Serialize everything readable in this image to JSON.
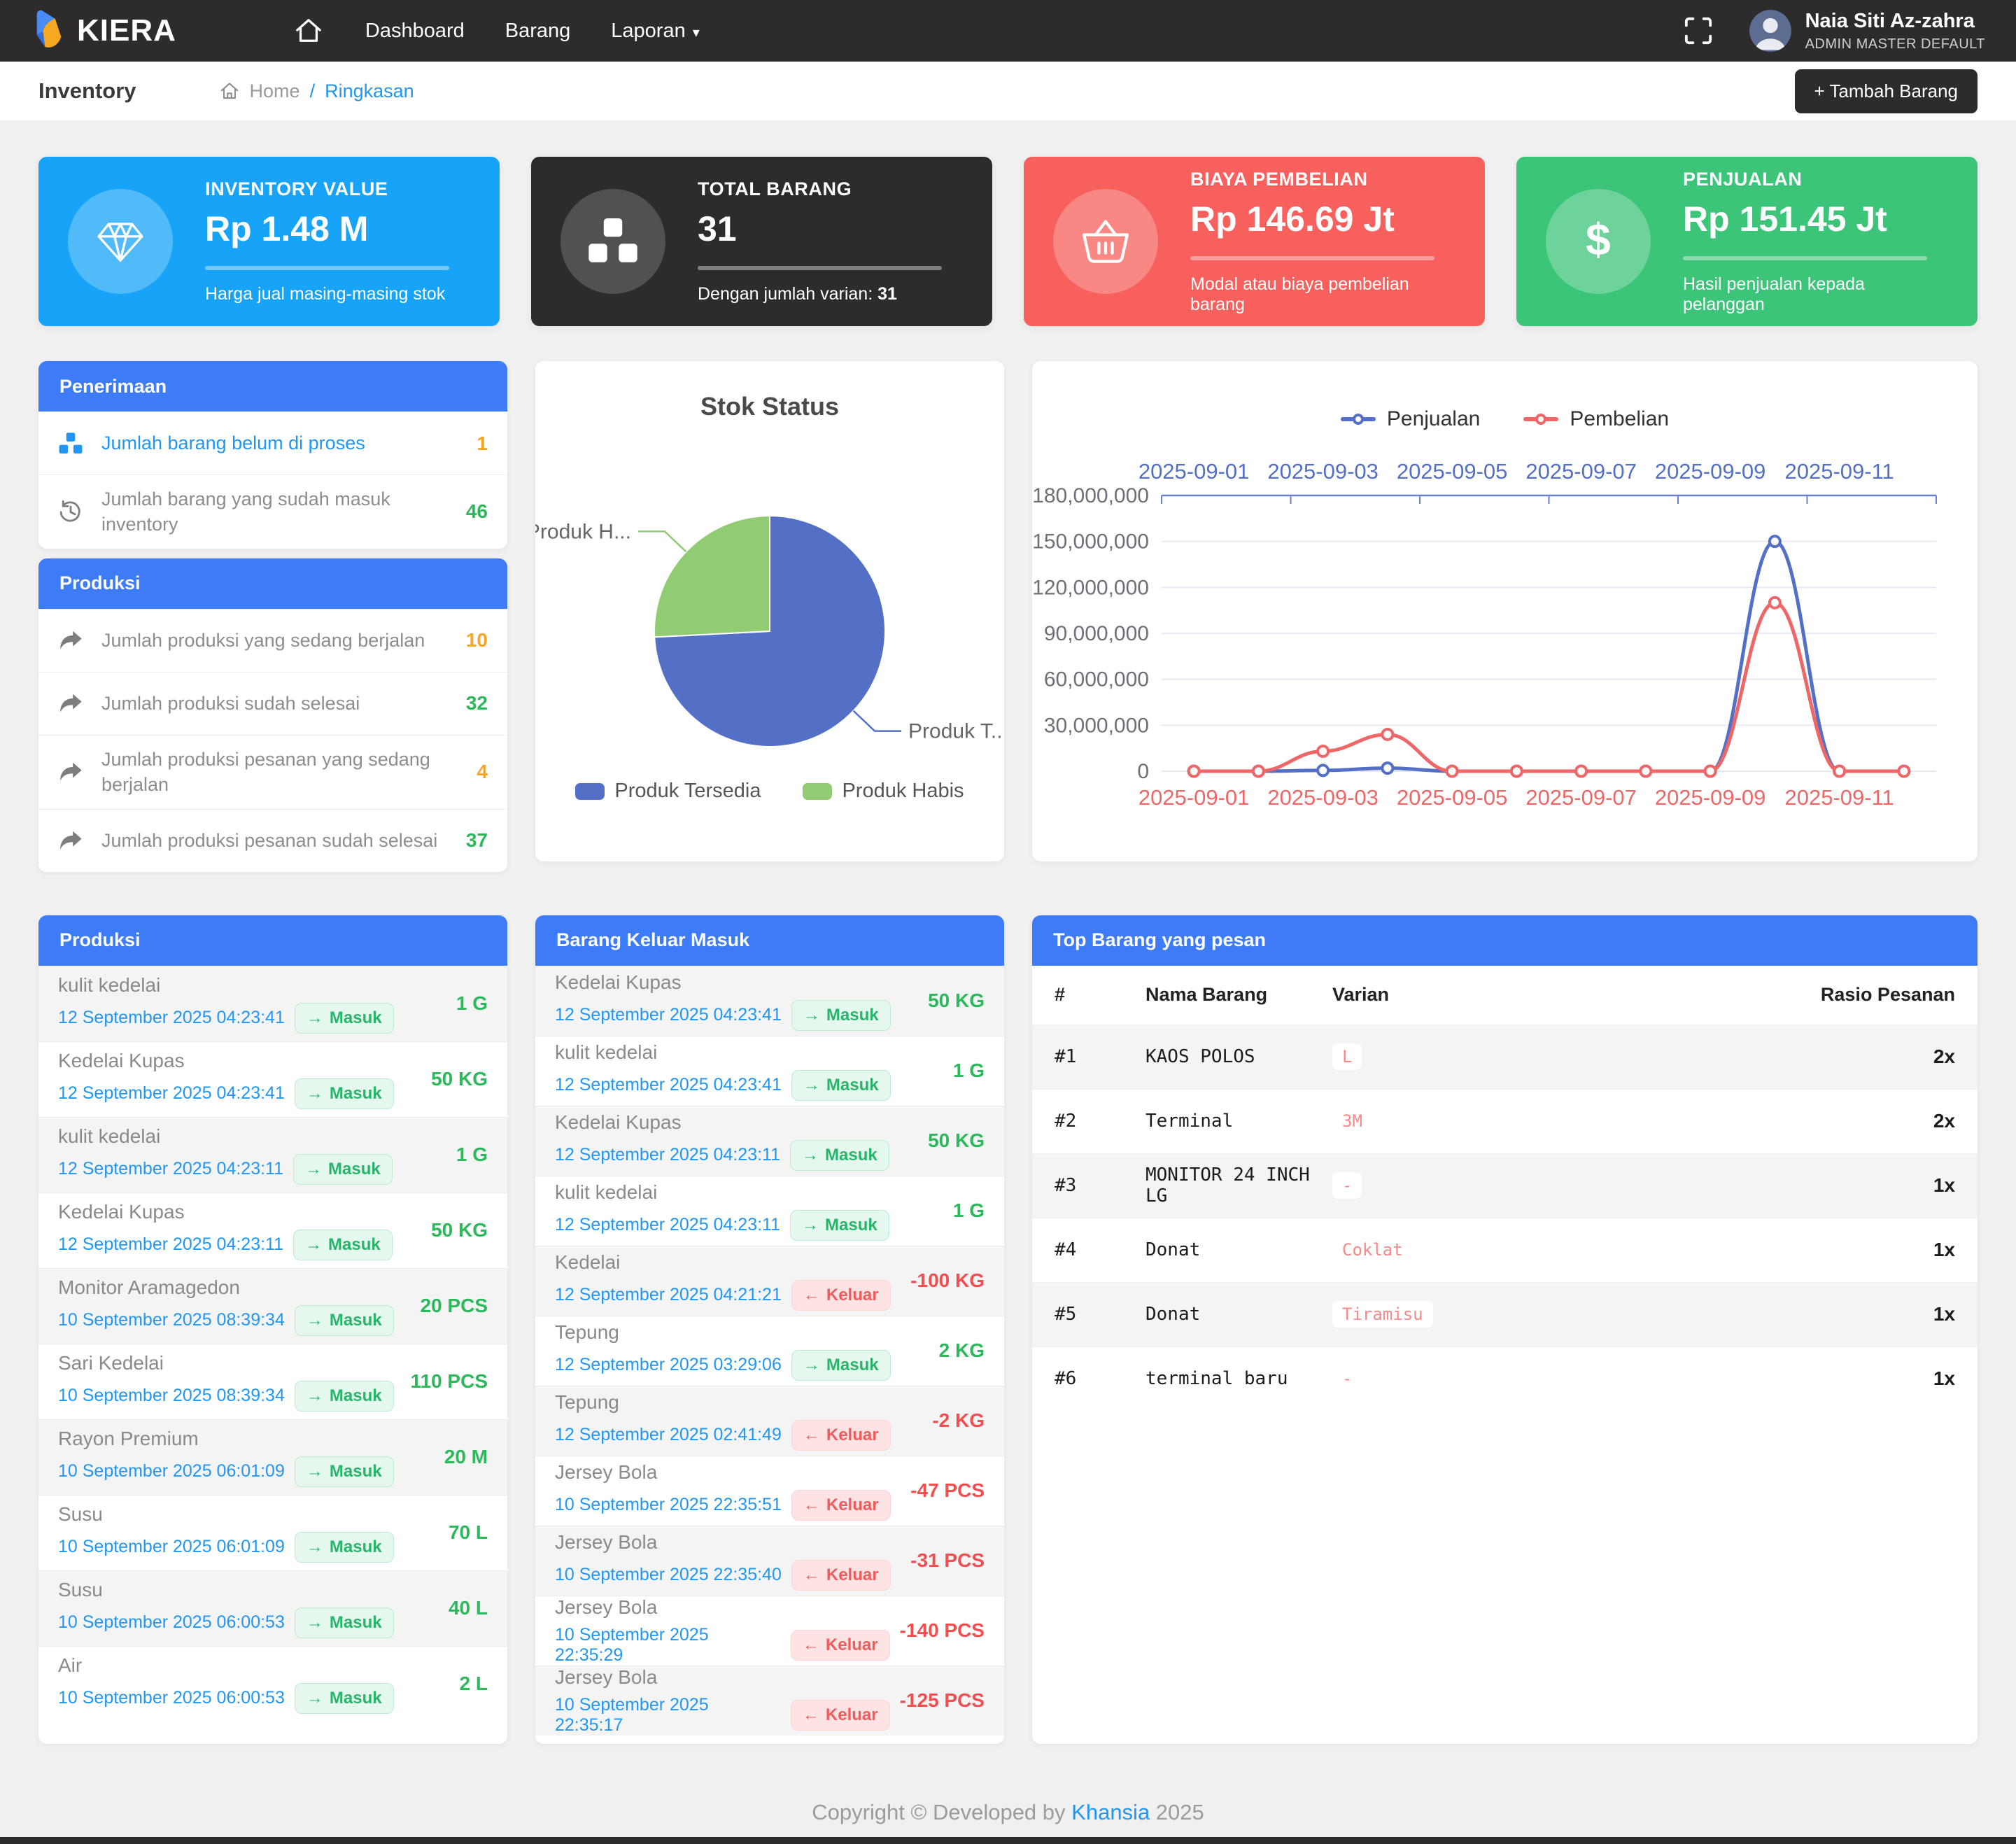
{
  "navbar": {
    "brand": "KIERA",
    "links": [
      {
        "label": "Dashboard",
        "caret": false
      },
      {
        "label": "Barang",
        "caret": false
      },
      {
        "label": "Laporan",
        "caret": true
      }
    ],
    "user": {
      "name": "Naia Siti Az-zahra",
      "role": "ADMIN MASTER DEFAULT"
    }
  },
  "breadcrumb": {
    "page_title": "Inventory",
    "home": "Home",
    "separator": "/",
    "current": "Ringkasan",
    "add_button": "+ Tambah Barang"
  },
  "stats": [
    {
      "label": "INVENTORY VALUE",
      "value": "Rp 1.48 M",
      "note": "Harga jual masing-masing stok",
      "color": "#17a3f7",
      "icon": "gem-icon"
    },
    {
      "label": "TOTAL BARANG",
      "value": "31",
      "note_prefix": "Dengan jumlah varian: ",
      "note_bold": "31",
      "color": "#2d2b2b",
      "icon": "cubes-icon"
    },
    {
      "label": "BIAYA PEMBELIAN",
      "value": "Rp 146.69 Jt",
      "note": "Modal atau biaya pembelian barang",
      "color": "#f7605c",
      "icon": "basket-icon"
    },
    {
      "label": "PENJUALAN",
      "value": "Rp 151.45 Jt",
      "note": "Hasil penjualan kepada pelanggan",
      "color": "#3cc479",
      "icon": "dollar-icon"
    }
  ],
  "penerimaan": {
    "title": "Penerimaan",
    "items": [
      {
        "icon": "cubes-icon",
        "label": "Jumlah barang belum di proses",
        "value": "1",
        "label_color": "#2196f3",
        "icon_color": "#2196f3",
        "value_color": "#f5a623"
      },
      {
        "icon": "history-icon",
        "label": "Jumlah barang yang sudah masuk inventory",
        "value": "46",
        "label_color": "#8d8d8d",
        "icon_color": "#7d7d7d",
        "value_color": "#2eb85c"
      }
    ]
  },
  "produksi_summary": {
    "title": "Produksi",
    "items": [
      {
        "icon": "share-icon",
        "label": "Jumlah produksi yang sedang berjalan",
        "value": "10",
        "label_color": "#8d8d8d",
        "icon_color": "#7d7d7d",
        "value_color": "#f5a623"
      },
      {
        "icon": "share-icon",
        "label": "Jumlah produksi sudah selesai",
        "value": "32",
        "label_color": "#8d8d8d",
        "icon_color": "#7d7d7d",
        "value_color": "#2eb85c"
      },
      {
        "icon": "share-icon",
        "label": "Jumlah produksi pesanan yang sedang berjalan",
        "value": "4",
        "label_color": "#8d8d8d",
        "icon_color": "#7d7d7d",
        "value_color": "#f5a623"
      },
      {
        "icon": "share-icon",
        "label": "Jumlah produksi pesanan sudah selesai",
        "value": "37",
        "label_color": "#8d8d8d",
        "icon_color": "#7d7d7d",
        "value_color": "#2eb85c"
      }
    ]
  },
  "chart_data": [
    {
      "type": "pie",
      "title": "Stok Status",
      "series": [
        {
          "name": "Produk Tersedia",
          "value": 23,
          "color": "#5470c6",
          "callout": "Produk T..."
        },
        {
          "name": "Produk Habis",
          "value": 8,
          "color": "#91cc75",
          "callout": "Produk H..."
        }
      ],
      "legend_position": "bottom"
    },
    {
      "type": "line",
      "x": [
        "2025-09-01",
        "2025-09-02",
        "2025-09-03",
        "2025-09-04",
        "2025-09-05",
        "2025-09-06",
        "2025-09-07",
        "2025-09-08",
        "2025-09-09",
        "2025-09-10",
        "2025-09-11",
        "2025-09-12"
      ],
      "series": [
        {
          "name": "Penjualan",
          "color": "#5470c6",
          "values": [
            0,
            0,
            500000,
            2000000,
            0,
            0,
            0,
            0,
            0,
            150000000,
            0,
            0
          ]
        },
        {
          "name": "Pembelian",
          "color": "#ee6666",
          "values": [
            0,
            0,
            13000000,
            24000000,
            0,
            0,
            0,
            0,
            0,
            110000000,
            0,
            0
          ]
        }
      ],
      "ylim": [
        0,
        180000000
      ],
      "ytick_step": 30000000,
      "x_label_every": 2,
      "grid": true,
      "legend_position": "top",
      "axis_label_color": "#6e7079"
    }
  ],
  "produksi_log": {
    "title": "Produksi",
    "rows": [
      {
        "name": "kulit kedelai",
        "datetime": "12 September 2025 04:23:41",
        "direction": "in",
        "qty": "1 G"
      },
      {
        "name": "Kedelai Kupas",
        "datetime": "12 September 2025 04:23:41",
        "direction": "in",
        "qty": "50 KG"
      },
      {
        "name": "kulit kedelai",
        "datetime": "12 September 2025 04:23:11",
        "direction": "in",
        "qty": "1 G"
      },
      {
        "name": "Kedelai Kupas",
        "datetime": "12 September 2025 04:23:11",
        "direction": "in",
        "qty": "50 KG"
      },
      {
        "name": "Monitor Aramagedon",
        "datetime": "10 September 2025 08:39:34",
        "direction": "in",
        "qty": "20 PCS"
      },
      {
        "name": "Sari Kedelai",
        "datetime": "10 September 2025 08:39:34",
        "direction": "in",
        "qty": "110 PCS"
      },
      {
        "name": "Rayon Premium",
        "datetime": "10 September 2025 06:01:09",
        "direction": "in",
        "qty": "20 M"
      },
      {
        "name": "Susu",
        "datetime": "10 September 2025 06:01:09",
        "direction": "in",
        "qty": "70 L"
      },
      {
        "name": "Susu",
        "datetime": "10 September 2025 06:00:53",
        "direction": "in",
        "qty": "40 L"
      },
      {
        "name": "Air",
        "datetime": "10 September 2025 06:00:53",
        "direction": "in",
        "qty": "2 L"
      }
    ]
  },
  "keluar_masuk": {
    "title": "Barang Keluar Masuk",
    "rows": [
      {
        "name": "Kedelai Kupas",
        "datetime": "12 September 2025 04:23:41",
        "direction": "in",
        "qty": "50 KG"
      },
      {
        "name": "kulit kedelai",
        "datetime": "12 September 2025 04:23:41",
        "direction": "in",
        "qty": "1 G"
      },
      {
        "name": "Kedelai Kupas",
        "datetime": "12 September 2025 04:23:11",
        "direction": "in",
        "qty": "50 KG"
      },
      {
        "name": "kulit kedelai",
        "datetime": "12 September 2025 04:23:11",
        "direction": "in",
        "qty": "1 G"
      },
      {
        "name": "Kedelai",
        "datetime": "12 September 2025 04:21:21",
        "direction": "out",
        "qty": "-100 KG"
      },
      {
        "name": "Tepung",
        "datetime": "12 September 2025 03:29:06",
        "direction": "in",
        "qty": "2 KG"
      },
      {
        "name": "Tepung",
        "datetime": "12 September 2025 02:41:49",
        "direction": "out",
        "qty": "-2 KG"
      },
      {
        "name": "Jersey Bola",
        "datetime": "10 September 2025 22:35:51",
        "direction": "out",
        "qty": "-47 PCS"
      },
      {
        "name": "Jersey Bola",
        "datetime": "10 September 2025 22:35:40",
        "direction": "out",
        "qty": "-31 PCS"
      },
      {
        "name": "Jersey Bola",
        "datetime": "10 September 2025 22:35:29",
        "direction": "out",
        "qty": "-140 PCS"
      },
      {
        "name": "Jersey Bola",
        "datetime": "10 September 2025 22:35:17",
        "direction": "out",
        "qty": "-125 PCS"
      }
    ]
  },
  "badges": {
    "in_label": "Masuk",
    "out_label": "Keluar",
    "in_arrow": "→",
    "out_arrow": "←"
  },
  "top_barang": {
    "title": "Top Barang yang pesan",
    "headers": [
      "#",
      "Nama Barang",
      "Varian",
      "Rasio Pesanan"
    ],
    "rows": [
      {
        "rank": "#1",
        "name": "KAOS POLOS",
        "varian": "L",
        "rasio": "2x"
      },
      {
        "rank": "#2",
        "name": "Terminal",
        "varian": "3M",
        "rasio": "2x"
      },
      {
        "rank": "#3",
        "name": "MONITOR 24 INCH LG",
        "varian": "-",
        "rasio": "1x"
      },
      {
        "rank": "#4",
        "name": "Donat",
        "varian": "Coklat",
        "rasio": "1x"
      },
      {
        "rank": "#5",
        "name": "Donat",
        "varian": "Tiramisu",
        "rasio": "1x"
      },
      {
        "rank": "#6",
        "name": "terminal baru",
        "varian": "-",
        "rasio": "1x"
      }
    ]
  },
  "footer": {
    "text_prefix": "Copyright © Developed by ",
    "brand": "Khansia",
    "year": " 2025"
  }
}
